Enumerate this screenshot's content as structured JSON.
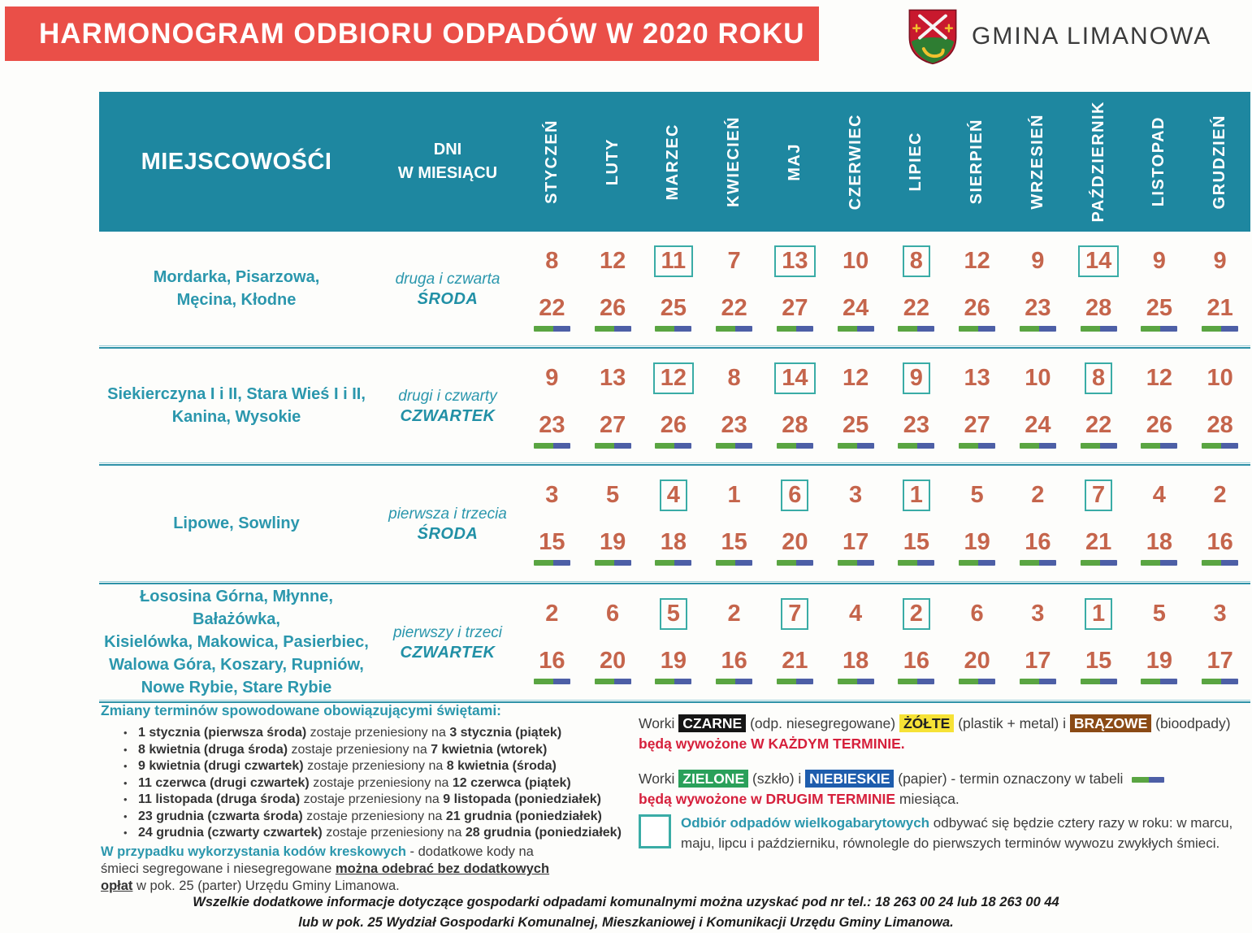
{
  "header": {
    "title": "HARMONOGRAM ODBIORU ODPADÓW W 2020 ROKU",
    "org_name": "GMINA LIMANOWA"
  },
  "table": {
    "col_localities": "MIEJSCOWOŚĆI",
    "col_days_line1": "DNI",
    "col_days_line2": "W MIESIĄCU",
    "months": [
      "STYCZEŃ",
      "LUTY",
      "MARZEC",
      "KWIECIEŃ",
      "MAJ",
      "CZERWIEC",
      "LIPIEC",
      "SIERPIEŃ",
      "WRZESIEŃ",
      "PAŹDZIERNIK",
      "LISTOPAD",
      "GRUDZIEŃ"
    ],
    "rows": [
      {
        "localities": [
          "Mordarka, Pisarzowa,",
          "Męcina, Kłodne"
        ],
        "schedule_line1": "druga i czwarta",
        "schedule_line2": "ŚRODA",
        "first_dates": [
          8,
          12,
          11,
          7,
          13,
          10,
          8,
          12,
          9,
          14,
          9,
          9
        ],
        "second_dates": [
          22,
          26,
          25,
          22,
          27,
          24,
          22,
          26,
          23,
          28,
          25,
          21
        ],
        "boxed_months": [
          2,
          4,
          6,
          9
        ]
      },
      {
        "localities": [
          "Siekierczyna I i II, Stara Wieś I i II,",
          "Kanina, Wysokie"
        ],
        "schedule_line1": "drugi i czwarty",
        "schedule_line2": "CZWARTEK",
        "first_dates": [
          9,
          13,
          12,
          8,
          14,
          12,
          9,
          13,
          10,
          8,
          12,
          10
        ],
        "second_dates": [
          23,
          27,
          26,
          23,
          28,
          25,
          23,
          27,
          24,
          22,
          26,
          28
        ],
        "boxed_months": [
          2,
          4,
          6,
          9
        ]
      },
      {
        "localities": [
          "Lipowe, Sowliny"
        ],
        "schedule_line1": "pierwsza i trzecia",
        "schedule_line2": "ŚRODA",
        "first_dates": [
          3,
          5,
          4,
          1,
          6,
          3,
          1,
          5,
          2,
          7,
          4,
          2
        ],
        "second_dates": [
          15,
          19,
          18,
          15,
          20,
          17,
          15,
          19,
          16,
          21,
          18,
          16
        ],
        "boxed_months": [
          2,
          4,
          6,
          9
        ]
      },
      {
        "localities": [
          "Łososina Górna, Młynne, Bałażówka,",
          "Kisielówka, Makowica, Pasierbiec,",
          "Walowa Góra, Koszary, Rupniów,",
          "Nowe Rybie, Stare Rybie"
        ],
        "schedule_line1": "pierwszy i trzeci",
        "schedule_line2": "CZWARTEK",
        "first_dates": [
          2,
          6,
          5,
          2,
          7,
          4,
          2,
          6,
          3,
          1,
          5,
          3
        ],
        "second_dates": [
          16,
          20,
          19,
          16,
          21,
          18,
          16,
          20,
          17,
          15,
          19,
          17
        ],
        "boxed_months": [
          2,
          4,
          6,
          9
        ]
      }
    ]
  },
  "holiday_changes": {
    "heading": "Zmiany terminów spowodowane obowiązującymi świętami:",
    "items": [
      {
        "from": "1 stycznia (pierwsza środa)",
        "mid": "zostaje przeniesiony na",
        "to": "3 stycznia (piątek)"
      },
      {
        "from": "8 kwietnia (druga środa)",
        "mid": "zostaje przeniesiony na",
        "to": "7 kwietnia (wtorek)"
      },
      {
        "from": "9 kwietnia (drugi czwartek)",
        "mid": "zostaje przeniesiony na",
        "to": "8 kwietnia (środa)"
      },
      {
        "from": "11 czerwca (drugi czwartek)",
        "mid": "zostaje przeniesiony na",
        "to": "12 czerwca (piątek)"
      },
      {
        "from": "11 listopada (druga środa)",
        "mid": "zostaje przeniesiony na",
        "to": "9 listopada (poniedziałek)"
      },
      {
        "from": "23 grudnia (czwarta środa)",
        "mid": "zostaje przeniesiony na",
        "to": "21 grudnia (poniedziałek)"
      },
      {
        "from": "24 grudnia (czwarty czwartek)",
        "mid": "zostaje przeniesiony na",
        "to": "28 grudnia (poniedziałek)"
      }
    ]
  },
  "barcode_note": {
    "teal": "W przypadku wykorzystania kodów kreskowych",
    "mid": "- dodatkowe kody na śmieci segregowane i niesegregowane",
    "underlined": "można odebrać bez dodatkowych opłat",
    "rest": "w pok. 25 (parter) Urzędu Gminy Limanowa."
  },
  "legend": {
    "bags1": {
      "prefix": "Worki",
      "black_label": "CZARNE",
      "black_desc": "(odp. niesegregowane)",
      "yellow_label": "ŻÓŁTE",
      "yellow_desc": "(plastik + metal)",
      "conj": "i",
      "brown_label": "BRĄZOWE",
      "brown_desc": "(bioodpady)",
      "line2": "będą wywożone W KAŻDYM TERMINIE."
    },
    "bags2": {
      "prefix": "Worki",
      "green_label": "ZIELONE",
      "green_desc": "(szkło)",
      "conj": "i",
      "blue_label": "NIEBIESKIE",
      "blue_desc": "(papier) - termin oznaczony w tabeli",
      "line2_red": "będą wywożone w DRUGIM TERMINIE",
      "line2_rest": "miesiąca."
    },
    "bulky": {
      "bold": "Odbiór odpadów wielkogabarytowych",
      "rest": "odbywać się będzie cztery razy w roku: w marcu, maju, lipcu i październiku, równolegle do pierwszych terminów wywozu zwykłych śmieci."
    }
  },
  "footer_note": {
    "line1": "Wszelkie dodatkowe informacje dotyczące gospodarki odpadami komunalnymi można uzyskać pod nr tel.: 18 263 00 24 lub 18 263 00 44",
    "line2": "lub w pok. 25 Wydział Gospodarki Komunalnej, Mieszkaniowej i Komunikacji Urzędu Gminy Limanowa."
  },
  "colors": {
    "banner_red": "#ea4f48",
    "table_teal": "#1e87a0",
    "teal_text": "#2b97ad",
    "date_terracotta": "#c5654c",
    "bulky_box_teal": "#3aaca6",
    "bar_green": "#5aa542",
    "bar_blue": "#4d5fa6",
    "alert_red": "#d6203c",
    "badge_black": "#151515",
    "badge_yellow": "#f6e236",
    "badge_brown": "#8a4a15",
    "badge_green": "#2aa05a",
    "badge_blue": "#1e5dad"
  }
}
